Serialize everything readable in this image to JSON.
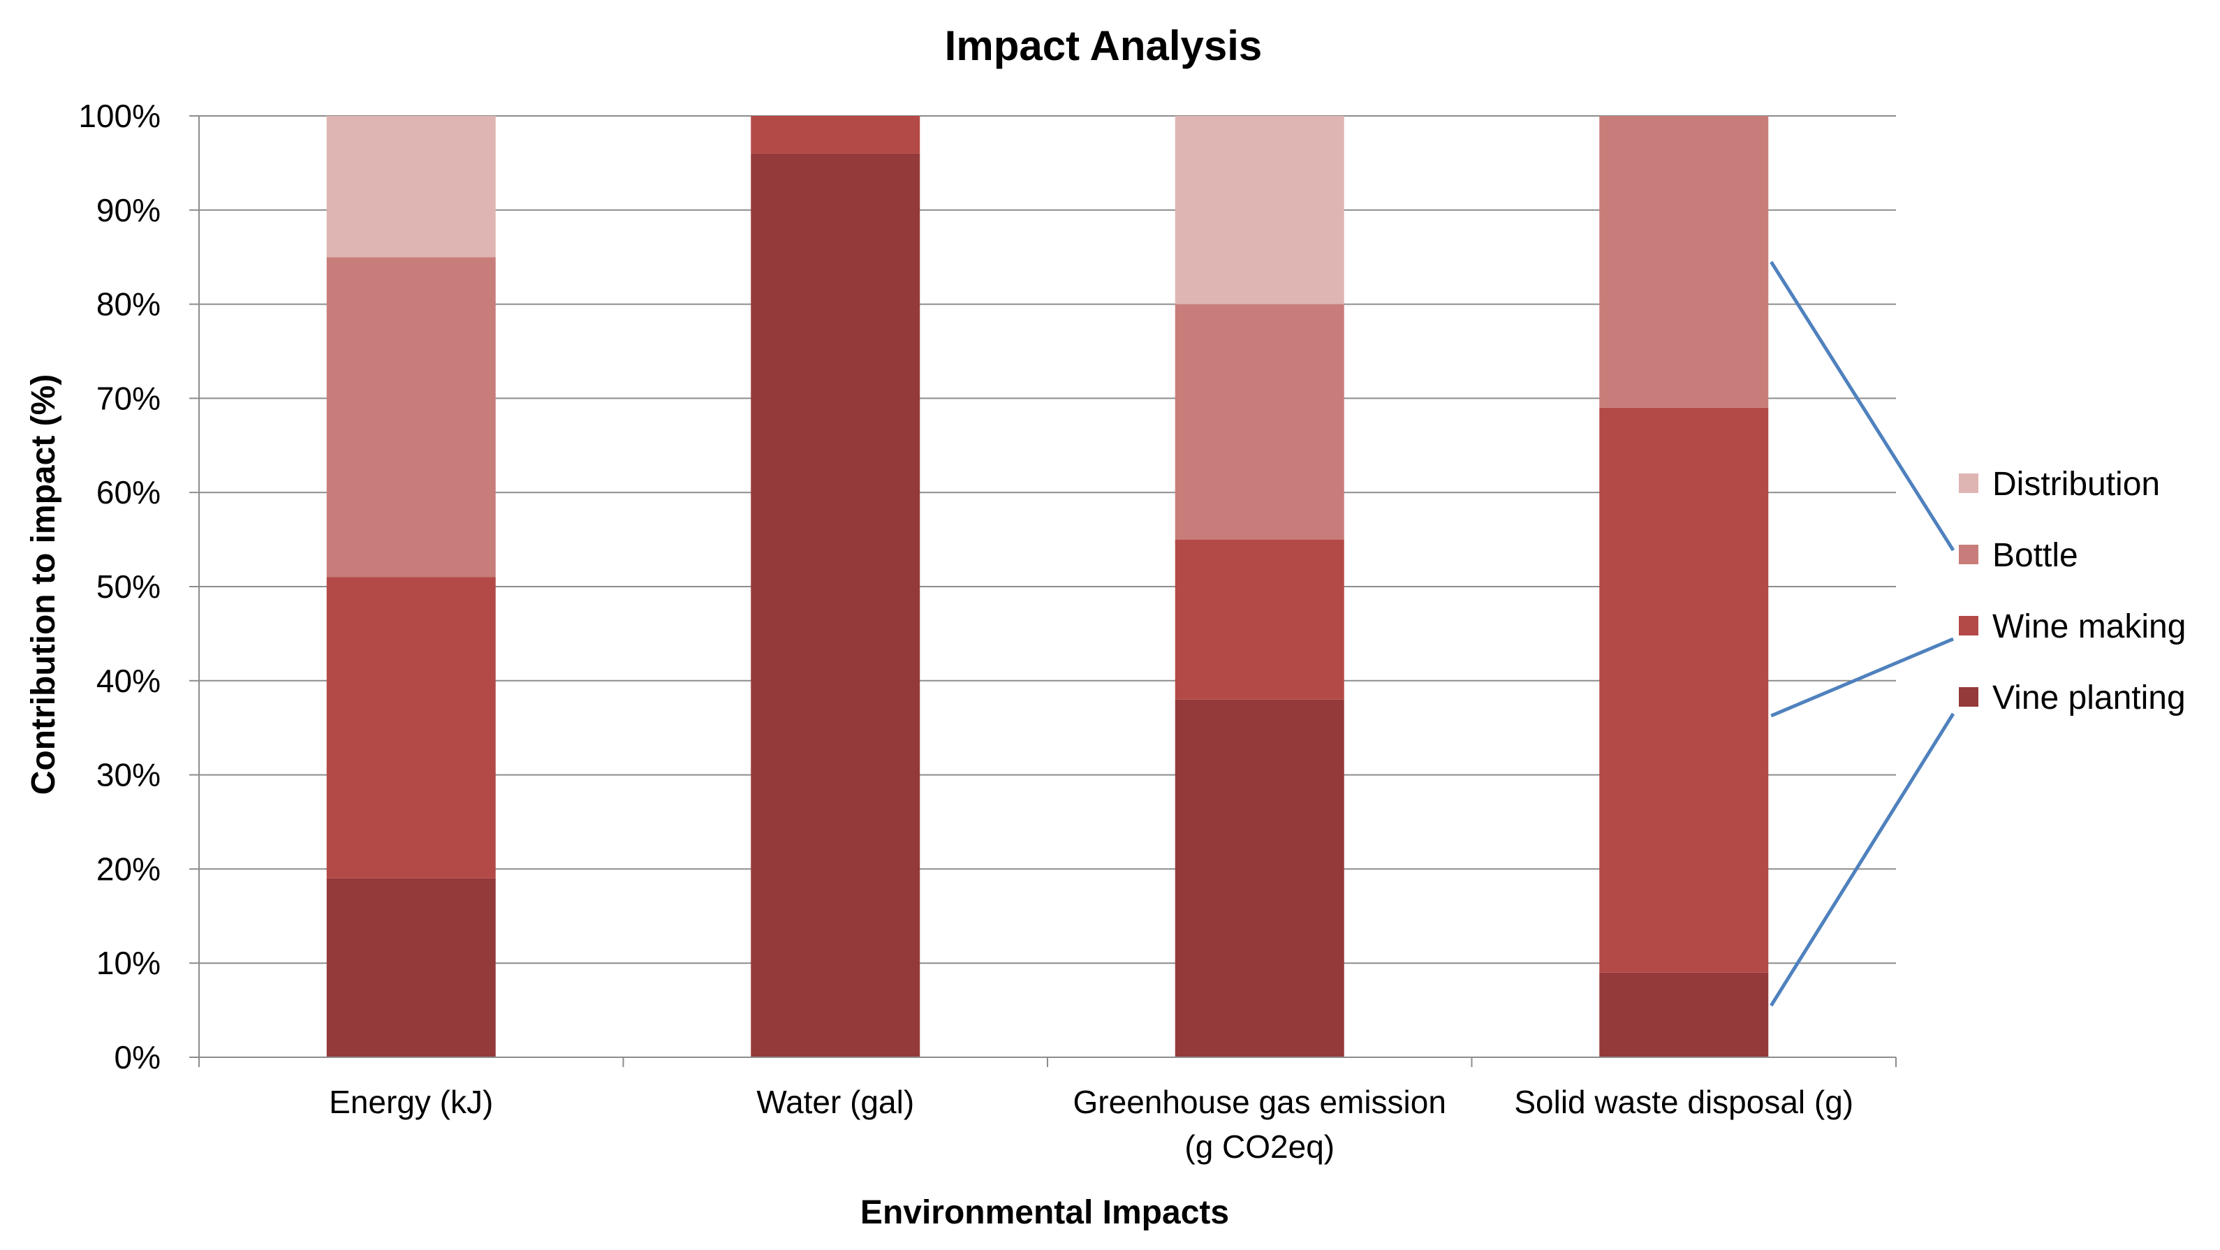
{
  "chart_data": {
    "type": "bar",
    "stacked": true,
    "percent_stacked": true,
    "title": "Impact Analysis",
    "xlabel": "Environmental Impacts",
    "ylabel": "Contribution to impact (%)",
    "ylim": [
      0,
      100
    ],
    "y_ticks": [
      "0%",
      "10%",
      "20%",
      "30%",
      "40%",
      "50%",
      "60%",
      "70%",
      "80%",
      "90%",
      "100%"
    ],
    "categories": [
      [
        "Energy (kJ)"
      ],
      [
        "Water (gal)"
      ],
      [
        "Greenhouse gas emission",
        "(g CO2eq)"
      ],
      [
        "Solid waste disposal (g)"
      ]
    ],
    "series": [
      {
        "name": "Vine planting",
        "color": "#953A3A",
        "values": [
          19,
          96,
          38,
          9
        ]
      },
      {
        "name": "Wine making",
        "color": "#B44A47",
        "values": [
          32,
          4,
          17,
          60
        ]
      },
      {
        "name": "Bottle",
        "color": "#C97D7A",
        "values": [
          34,
          0,
          25,
          31
        ]
      },
      {
        "name": "Distribution",
        "color": "#DFB5B4",
        "values": [
          15,
          0,
          20,
          0
        ]
      }
    ],
    "legend": {
      "position": "right",
      "order": [
        "Distribution",
        "Bottle",
        "Wine making",
        "Vine planting"
      ]
    },
    "annotation_line_color": "#4F81BD",
    "grid": true
  }
}
